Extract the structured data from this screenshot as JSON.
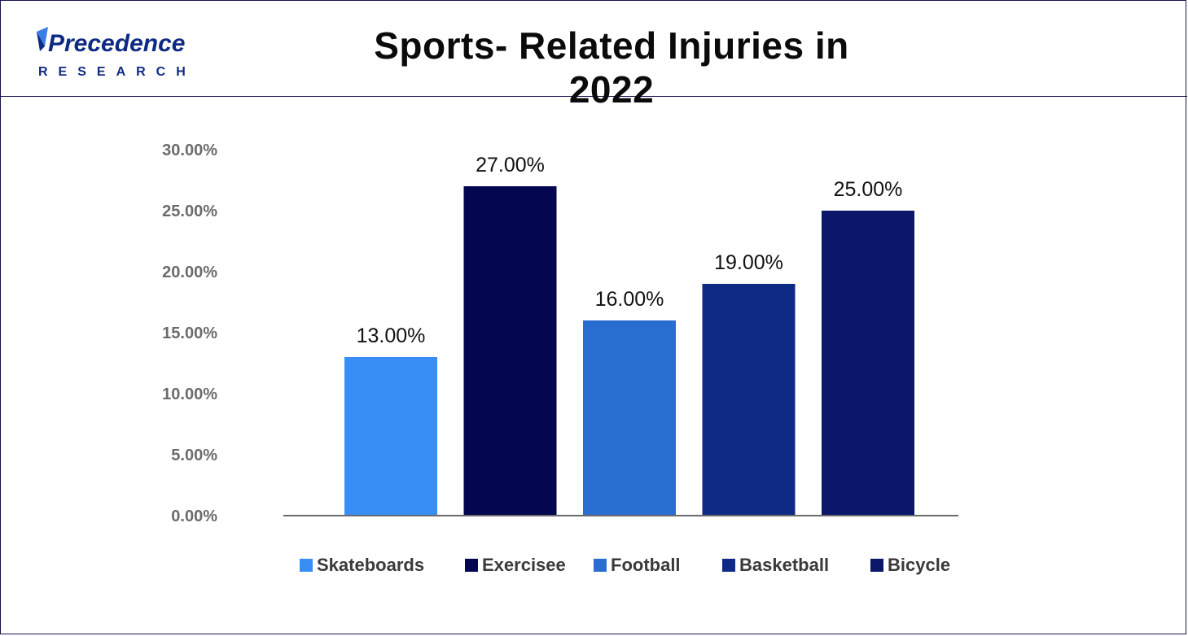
{
  "header": {
    "title": "Sports- Related Injuries in 2022",
    "logo": {
      "line1": "Precedence",
      "line2": "RESEARCH"
    }
  },
  "chart_data": {
    "type": "bar",
    "title": "Sports- Related Injuries in 2022",
    "categories": [
      "Skateboards",
      "Exercisee",
      "Football",
      "Basketball",
      "Bicycle"
    ],
    "values": [
      13.0,
      27.0,
      16.0,
      19.0,
      25.0
    ],
    "value_labels": [
      "13.00%",
      "27.00%",
      "16.00%",
      "19.00%",
      "25.00%"
    ],
    "colors": [
      "#388ef5",
      "#04064f",
      "#2a6dd0",
      "#0e2a84",
      "#0a176b"
    ],
    "y_ticks": [
      "0.00%",
      "5.00%",
      "10.00%",
      "15.00%",
      "20.00%",
      "25.00%",
      "30.00%"
    ],
    "ylim": [
      0,
      30
    ],
    "xlabel": "",
    "ylabel": "",
    "grid": false,
    "legend": {
      "position": "bottom",
      "items": [
        "Skateboards",
        "Exercisee",
        "Football",
        "Basketball",
        "Bicycle"
      ]
    }
  }
}
